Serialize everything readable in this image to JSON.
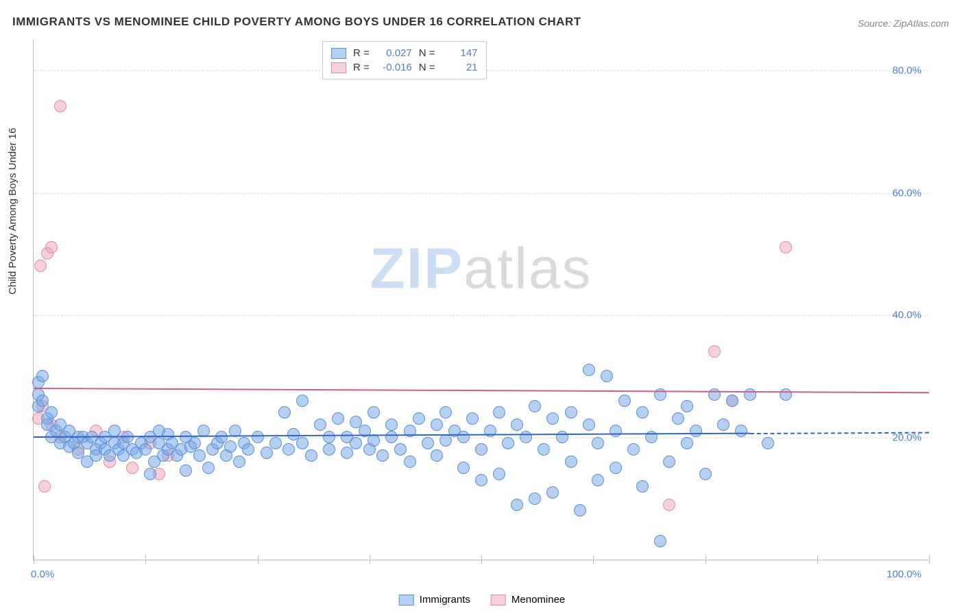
{
  "title": "IMMIGRANTS VS MENOMINEE CHILD POVERTY AMONG BOYS UNDER 16 CORRELATION CHART",
  "source": "Source: ZipAtlas.com",
  "y_axis_title": "Child Poverty Among Boys Under 16",
  "watermark_a": "ZIP",
  "watermark_b": "atlas",
  "chart": {
    "type": "scatter",
    "xlim": [
      0,
      100
    ],
    "ylim": [
      0,
      85
    ],
    "yticks": [
      20,
      40,
      60,
      80
    ],
    "ytick_labels": [
      "20.0%",
      "40.0%",
      "60.0%",
      "80.0%"
    ],
    "xticks": [
      0,
      12.5,
      25,
      37.5,
      50,
      62.5,
      75,
      87.5,
      100
    ],
    "xlabel_min": "0.0%",
    "xlabel_max": "100.0%",
    "background_color": "#ffffff",
    "grid_color": "#dddddd",
    "axis_color": "#bbbbbb"
  },
  "series": {
    "immigrants": {
      "label": "Immigrants",
      "R": "0.027",
      "N": "147",
      "fill_color": "rgba(120, 170, 230, 0.55)",
      "border_color": "#5a8fd6",
      "marker_radius": 9,
      "trend": {
        "x1": 0,
        "y1": 20.2,
        "x2": 80,
        "y2": 20.8,
        "color": "#2f66c6",
        "dash_to_x": 100
      },
      "points": [
        [
          0.5,
          29
        ],
        [
          0.5,
          27
        ],
        [
          0.5,
          25
        ],
        [
          1,
          30
        ],
        [
          1,
          26
        ],
        [
          1.5,
          23
        ],
        [
          1.5,
          22
        ],
        [
          2,
          24
        ],
        [
          2,
          20
        ],
        [
          2.5,
          21
        ],
        [
          3,
          22
        ],
        [
          3,
          19
        ],
        [
          3.5,
          20
        ],
        [
          4,
          21
        ],
        [
          4,
          18.5
        ],
        [
          4.5,
          19
        ],
        [
          5,
          20
        ],
        [
          5,
          17.5
        ],
        [
          5.5,
          20
        ],
        [
          6,
          19
        ],
        [
          6,
          16
        ],
        [
          6.5,
          20
        ],
        [
          7,
          18
        ],
        [
          7,
          17
        ],
        [
          7.5,
          19
        ],
        [
          8,
          20
        ],
        [
          8,
          18
        ],
        [
          8.5,
          17
        ],
        [
          9,
          19
        ],
        [
          9,
          21
        ],
        [
          9.5,
          18
        ],
        [
          10,
          19
        ],
        [
          10,
          17
        ],
        [
          10.5,
          20
        ],
        [
          11,
          18
        ],
        [
          11.5,
          17.5
        ],
        [
          12,
          19
        ],
        [
          12.5,
          18
        ],
        [
          13,
          20
        ],
        [
          13,
          14
        ],
        [
          13.5,
          16
        ],
        [
          14,
          19
        ],
        [
          14,
          21
        ],
        [
          14.5,
          17
        ],
        [
          15,
          18
        ],
        [
          15,
          20.5
        ],
        [
          15.5,
          19
        ],
        [
          16,
          17
        ],
        [
          16.5,
          18
        ],
        [
          17,
          20
        ],
        [
          17,
          14.5
        ],
        [
          17.5,
          18.5
        ],
        [
          18,
          19
        ],
        [
          18.5,
          17
        ],
        [
          19,
          21
        ],
        [
          19.5,
          15
        ],
        [
          20,
          18
        ],
        [
          20.5,
          19
        ],
        [
          21,
          20
        ],
        [
          21.5,
          17
        ],
        [
          22,
          18.5
        ],
        [
          22.5,
          21
        ],
        [
          23,
          16
        ],
        [
          23.5,
          19
        ],
        [
          24,
          18
        ],
        [
          25,
          20
        ],
        [
          26,
          17.5
        ],
        [
          27,
          19
        ],
        [
          28,
          24
        ],
        [
          28.5,
          18
        ],
        [
          29,
          20.5
        ],
        [
          30,
          26
        ],
        [
          30,
          19
        ],
        [
          31,
          17
        ],
        [
          32,
          22
        ],
        [
          33,
          20
        ],
        [
          33,
          18
        ],
        [
          34,
          23
        ],
        [
          35,
          20
        ],
        [
          35,
          17.5
        ],
        [
          36,
          22.5
        ],
        [
          36,
          19
        ],
        [
          37,
          21
        ],
        [
          37.5,
          18
        ],
        [
          38,
          19.5
        ],
        [
          38,
          24
        ],
        [
          39,
          17
        ],
        [
          40,
          20
        ],
        [
          40,
          22
        ],
        [
          41,
          18
        ],
        [
          42,
          21
        ],
        [
          42,
          16
        ],
        [
          43,
          23
        ],
        [
          44,
          19
        ],
        [
          45,
          22
        ],
        [
          45,
          17
        ],
        [
          46,
          24
        ],
        [
          46,
          19.5
        ],
        [
          47,
          21
        ],
        [
          48,
          15
        ],
        [
          48,
          20
        ],
        [
          49,
          23
        ],
        [
          50,
          18
        ],
        [
          50,
          13
        ],
        [
          51,
          21
        ],
        [
          52,
          24
        ],
        [
          52,
          14
        ],
        [
          53,
          19
        ],
        [
          54,
          22
        ],
        [
          54,
          9
        ],
        [
          55,
          20
        ],
        [
          56,
          10
        ],
        [
          56,
          25
        ],
        [
          57,
          18
        ],
        [
          58,
          23
        ],
        [
          58,
          11
        ],
        [
          59,
          20
        ],
        [
          60,
          16
        ],
        [
          60,
          24
        ],
        [
          61,
          8
        ],
        [
          62,
          22
        ],
        [
          62,
          31
        ],
        [
          63,
          19
        ],
        [
          63,
          13
        ],
        [
          64,
          30
        ],
        [
          65,
          21
        ],
        [
          65,
          15
        ],
        [
          66,
          26
        ],
        [
          67,
          18
        ],
        [
          68,
          24
        ],
        [
          68,
          12
        ],
        [
          69,
          20
        ],
        [
          70,
          3
        ],
        [
          70,
          27
        ],
        [
          71,
          16
        ],
        [
          72,
          23
        ],
        [
          73,
          19
        ],
        [
          73,
          25
        ],
        [
          74,
          21
        ],
        [
          75,
          14
        ],
        [
          76,
          27
        ],
        [
          77,
          22
        ],
        [
          78,
          26
        ],
        [
          79,
          21
        ],
        [
          80,
          27
        ],
        [
          82,
          19
        ],
        [
          84,
          27
        ]
      ]
    },
    "menominee": {
      "label": "Menominee",
      "R": "-0.016",
      "N": "21",
      "fill_color": "rgba(240, 150, 175, 0.45)",
      "border_color": "#e58aa3",
      "marker_radius": 9,
      "trend": {
        "x1": 0,
        "y1": 28.2,
        "x2": 100,
        "y2": 27.5,
        "color": "#d65a88"
      },
      "points": [
        [
          0.5,
          23
        ],
        [
          0.8,
          48
        ],
        [
          1,
          25
        ],
        [
          1.2,
          12
        ],
        [
          1.5,
          50
        ],
        [
          2,
          51
        ],
        [
          2,
          22
        ],
        [
          3,
          74
        ],
        [
          3,
          20
        ],
        [
          5,
          18
        ],
        [
          7,
          21
        ],
        [
          8.5,
          16
        ],
        [
          10,
          20
        ],
        [
          11,
          15
        ],
        [
          13,
          19
        ],
        [
          14,
          14
        ],
        [
          15,
          17
        ],
        [
          71,
          9
        ],
        [
          76,
          34
        ],
        [
          78,
          26
        ],
        [
          84,
          51
        ]
      ]
    }
  }
}
